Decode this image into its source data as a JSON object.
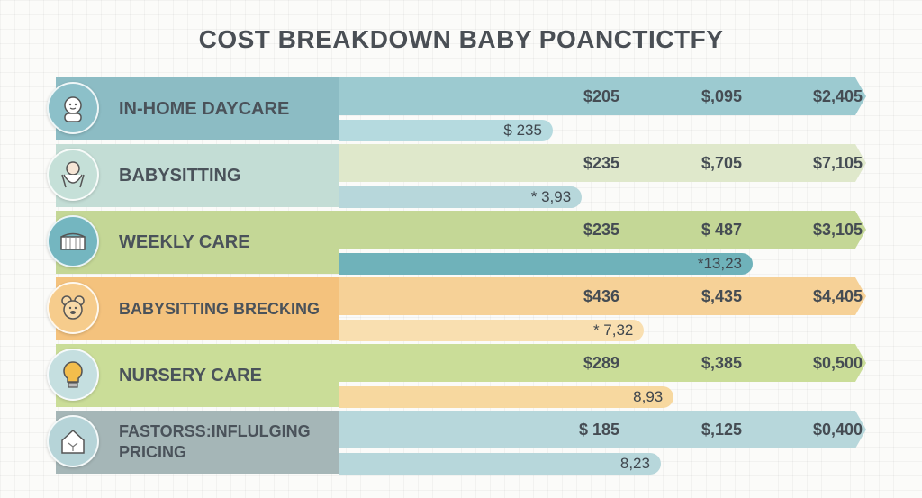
{
  "title": "COST BREAKDOWN BABY POANCTICTFY",
  "chart_data": {
    "type": "bar",
    "title": "COST BREAKDOWN BABY POANCTICTFY",
    "columns": 3,
    "rows": [
      {
        "label": "IN-HOME DAYCARE",
        "icon": "baby-face-icon",
        "values": [
          "$205",
          "$,095",
          "$2,405"
        ],
        "sub_value_label": "$ 235",
        "sub_value": 235,
        "colors": {
          "main": "#9ccad0",
          "label": "#8cbcc4",
          "sub": "#b5dadf",
          "icon": "#8cc0c9"
        }
      },
      {
        "label": "BABYSITTING",
        "icon": "baby-carrier-icon",
        "values": [
          "$235",
          "$,705",
          "$7,105"
        ],
        "sub_value_label": "* 3,93",
        "sub_value": 393,
        "colors": {
          "main": "#dfe8cb",
          "label": "#c3ddd5",
          "sub": "#b7d7db",
          "icon": "#c5e0d8"
        }
      },
      {
        "label": "WEEKLY CARE",
        "icon": "crib-icon",
        "values": [
          "$235",
          "$ 487",
          "$3,105"
        ],
        "sub_value_label": "*13,23",
        "sub_value": 1323,
        "colors": {
          "main": "#c4d796",
          "label": "#c4d796",
          "sub": "#6fb2ba",
          "icon": "#74b6c0"
        }
      },
      {
        "label": "BABYSITTING BRECKING",
        "icon": "teddy-bear-icon",
        "values": [
          "$436",
          "$,435",
          "$4,405"
        ],
        "sub_value_label": "* 7,32",
        "sub_value": 732,
        "colors": {
          "main": "#f6d197",
          "label": "#f4c27d",
          "sub": "#f9dfb0",
          "icon": "#f6cc8c"
        }
      },
      {
        "label": "NURSERY CARE",
        "icon": "light-bulb-icon",
        "values": [
          "$289",
          "$,385",
          "$0,500"
        ],
        "sub_value_label": "8,93",
        "sub_value": 893,
        "colors": {
          "main": "#cadd98",
          "label": "#cadd98",
          "sub": "#f7d89f",
          "icon": "#c5dfe0"
        }
      },
      {
        "label": "FASTORSS:INFLULGING PRICING",
        "icon": "house-icon",
        "values": [
          "$ 185",
          "$,125",
          "$0,400"
        ],
        "sub_value_label": "8,23",
        "sub_value": 823,
        "colors": {
          "main": "#b7d7db",
          "label": "#a5b6b7",
          "sub": "#b7d7db",
          "icon": "#b6d4d8"
        }
      }
    ]
  }
}
